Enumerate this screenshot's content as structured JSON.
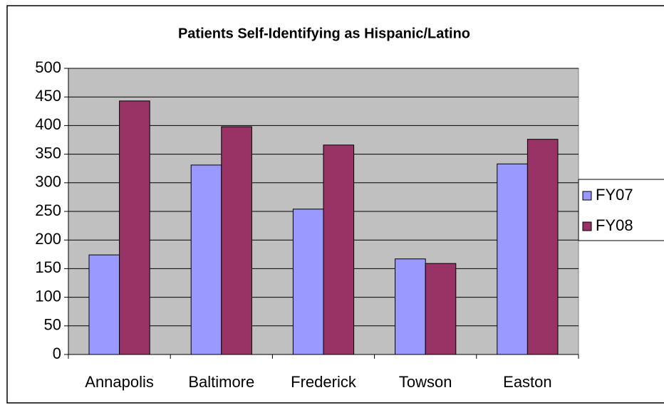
{
  "chart_data": {
    "type": "bar",
    "title": "Patients Self-Identifying as Hispanic/Latino",
    "categories": [
      "Annapolis",
      "Baltimore",
      "Frederick",
      "Towson",
      "Easton"
    ],
    "series": [
      {
        "name": "FY07",
        "color": "#9999ff",
        "values": [
          174,
          331,
          254,
          167,
          333
        ]
      },
      {
        "name": "FY08",
        "color": "#993366",
        "values": [
          443,
          398,
          366,
          159,
          376
        ]
      }
    ],
    "ylim": [
      0,
      500
    ],
    "yticks": [
      0,
      50,
      100,
      150,
      200,
      250,
      300,
      350,
      400,
      450,
      500
    ],
    "grid": true,
    "legend": "right"
  }
}
